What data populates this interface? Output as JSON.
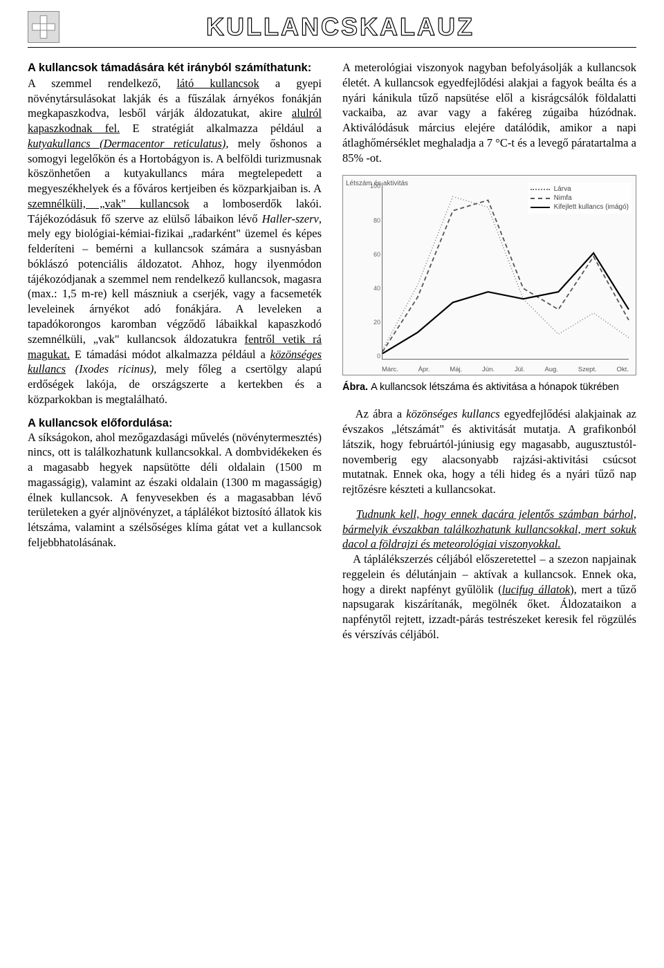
{
  "header": {
    "title": "KULLANCSKALAUZ"
  },
  "left": {
    "lead": "A kullancsok támadására két irányból számíthatunk:",
    "p1a": "A szemmel rendelkező, ",
    "p1_underline1": "látó kullancsok",
    "p1b": " a gyepi növénytársulásokat lakják és a fűszálak árnyékos fonákján megkapaszkodva, lesből várják áldozatukat, akire ",
    "p1_underline2": "alulról kapaszkodnak fel.",
    "p1c": " E stratégiát alkalmazza például a ",
    "p1_italic1": "kutyakullancs (Dermacentor reticulatus),",
    "p1d": " mely őshonos a somogyi legelőkön és a Hortobágyon is. A belföldi turizmusnak köszönhetően a kutyakullancs mára megtelepedett a megyeszékhelyek és a főváros kertjeiben és közparkjaiban is. A ",
    "p1_underline3": "szemnélküli, „vak\" kullancsok",
    "p1e": " a lomboserdők lakói. Tájékozódásuk fő szerve az elülső lábaikon lévő ",
    "p1_italic2": "Haller-szerv",
    "p1f": ", mely egy biológiai-kémiai-fizikai „radarként\" üzemel és képes felderíteni – bemérni a kullancsok számára a susnyásban bóklászó potenciális áldozatot. Ahhoz, hogy ilyenmódon tájékozódjanak a szemmel nem rendelkező kullancsok, magasra (max.: 1,5 m-re) kell mászniuk a cserjék, vagy a facsemeték leveleinek árnyékot adó fonákjára. A leveleken a tapadókorongos karomban végződő lábaikkal kapaszkodó szemnélküli, „vak\" kullancsok áldozatukra ",
    "p1_underline4": "fentről vetik rá magukat.",
    "p1g": " E támadási módot alkalmazza például a ",
    "p1_underline5": "közönséges kullancs",
    "p1h": " ",
    "p1_italic3": "(Ixodes ricinus),",
    "p1i": " mely főleg a csertölgy alapú erdőségek lakója, de országszerte a kertekben és a közparkokban is megtalálható.",
    "subhead": "A kullancsok előfordulása:",
    "p2": "A síkságokon, ahol mezőgazdasági művelés (növénytermesztés) nincs, ott is találkozhatunk kullancsokkal. A dombvidékeken és a magasabb hegyek napsütötte déli oldalain (1500 m magasságig), valamint az északi oldalain (1300 m magasságig) élnek kullancsok. A fenyvesekben és a magasabban lévő területeken a gyér aljnövényzet, a táplálékot biztosító állatok kis létszáma, valamint a szélsőséges klíma gátat vet a kullancsok feljebbhatolásának."
  },
  "right": {
    "p1": "A meterológiai viszonyok nagyban befolyásolják a kullancsok életét. A kullancsok egyedfejlődési alakjai a fagyok beálta és a nyári kánikula tűző napsütése elől a kisrágcsálók földalatti vackaiba, az avar vagy a fakéreg zúgaiba húzódnak. Aktiválódásuk március elejére datálódik, amikor a napi átlaghőmérséklet meghaladja a 7 °C-t és a levegő páratartalma a 85% -ot.",
    "caption_label": "Ábra.",
    "caption_text": "A kullancsok létszáma és aktivitása a hónapok tükrében",
    "p2a": "Az ábra a ",
    "p2_italic": "közönséges kullancs",
    "p2b": " egyedfejlődési alakjainak az évszakos „létszámát\" és aktivitását mutatja. A grafikonból látszik, hogy februártól-júniusig egy magasabb, augusztustól-novemberig egy alacsonyabb rajzási-aktivitási csúcsot mutatnak. Ennek oka, hogy a téli hideg és a nyári tűző nap rejtőzésre készteti a kullancsokat.",
    "p3_underline": "Tudnunk kell, hogy ennek dacára jelentős számban bárhol, bármelyik évszakban találkozhatunk kullancsokkal, mert sokuk dacol a földrajzi és meteorológiai viszonyokkal.",
    "p4a": "A táplálékszerzés céljából előszeretettel – a szezon napjainak reggelein és délutánjain – aktívak a kullancsok. Ennek oka, hogy a direkt napfényt gyűlölik (",
    "p4_italic": "lucifug állatok",
    "p4b": "), mert a tűző napsugarak kiszárítanák, megölnék őket. Áldozataikon a napfénytől rejtett, izzadt-párás testrészeket keresik fel rögzülés és vérszívás céljából."
  },
  "chart": {
    "type": "line",
    "background_color": "#fafafa",
    "border_color": "#888888",
    "axis_color": "#666666",
    "grid_color": "#e0e0e0",
    "ylabel_text": "Létszám és aktivitás",
    "ylim": [
      0,
      100
    ],
    "ytick_step": 20,
    "yticks": [
      0,
      20,
      40,
      60,
      80,
      100
    ],
    "x_categories": [
      "Márc.",
      "Ápr.",
      "Máj.",
      "Jún.",
      "Júl.",
      "Aug.",
      "Szept.",
      "Okt."
    ],
    "series": [
      {
        "name": "Lárva",
        "color": "#777777",
        "dash": "1,3",
        "width": 1.5,
        "values": [
          5,
          42,
          92,
          86,
          34,
          14,
          26,
          12
        ]
      },
      {
        "name": "Nimfa",
        "color": "#555555",
        "dash": "6,4",
        "width": 1.8,
        "values": [
          4,
          35,
          84,
          90,
          40,
          28,
          58,
          22
        ]
      },
      {
        "name": "Kifejlett kullancs (imágó)",
        "color": "#000000",
        "dash": "",
        "width": 2.2,
        "values": [
          3,
          15,
          32,
          38,
          34,
          38,
          60,
          28
        ]
      }
    ],
    "legend_position": "top-right",
    "title_fontsize": 10,
    "label_fontsize": 9
  }
}
